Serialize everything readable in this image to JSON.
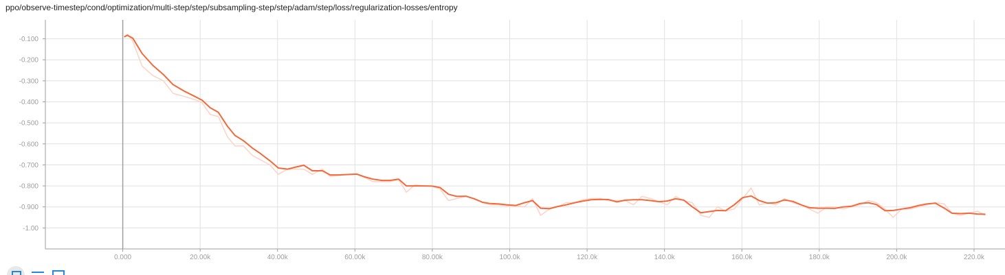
{
  "title": "ppo/observe-timestep/cond/optimization/multi-step/step/subsampling-step/step/adam/step/loss/regularization-losses/entropy",
  "colors": {
    "smoothed": "#f4683a",
    "raw": "#fcd3c5",
    "grid": "#e0e0e0",
    "axis": "#9e9e9e",
    "zero_line": "#9e9e9e",
    "tick_text": "#9e9e9e",
    "toolbar": "#1e88e5"
  },
  "toolbar": {
    "icons": [
      "fit-domain-icon",
      "toggle-log-scale-icon",
      "expand-chart-icon"
    ]
  },
  "chart_data": {
    "type": "line",
    "title": "ppo/observe-timestep/cond/optimization/multi-step/step/subsampling-step/step/adam/step/loss/regularization-losses/entropy",
    "xlabel": "",
    "ylabel": "",
    "xlim": [
      -20000,
      228000
    ],
    "ylim": [
      -1.1,
      -0.01
    ],
    "grid": true,
    "x_tick_labels": [
      "0.000",
      "20.00k",
      "40.00k",
      "60.00k",
      "80.00k",
      "100.0k",
      "120.0k",
      "140.0k",
      "160.0k",
      "180.0k",
      "200.0k",
      "220.0k"
    ],
    "x_ticks": [
      0,
      20000,
      40000,
      60000,
      80000,
      100000,
      120000,
      140000,
      160000,
      180000,
      200000,
      220000
    ],
    "y_tick_labels": [
      "-0.100",
      "-0.200",
      "-0.300",
      "-0.400",
      "-0.500",
      "-0.600",
      "-0.700",
      "-0.800",
      "-0.900",
      "-1.00"
    ],
    "y_ticks": [
      -0.1,
      -0.2,
      -0.3,
      -0.4,
      -0.5,
      -0.6,
      -0.7,
      -0.8,
      -0.9,
      -1.0
    ],
    "series": [
      {
        "name": "",
        "role": "raw",
        "x": [
          500,
          1200,
          2600,
          5000,
          7800,
          10500,
          13000,
          16000,
          18700,
          20500,
          22600,
          24700,
          27000,
          29000,
          31200,
          33500,
          35500,
          38000,
          40200,
          42600,
          44800,
          46800,
          49000,
          51600,
          53600,
          55800,
          58000,
          60500,
          62500,
          64700,
          67000,
          69000,
          71300,
          73300,
          75500,
          77800,
          80000,
          82000,
          84200,
          86300,
          88700,
          90800,
          93000,
          95000,
          97200,
          99400,
          101600,
          103800,
          105900,
          108000,
          110300,
          112400,
          114600,
          116800,
          119000,
          121100,
          123400,
          125500,
          127700,
          129900,
          132000,
          134200,
          136400,
          138600,
          140700,
          142900,
          145000,
          147200,
          149400,
          151600,
          153700,
          155800,
          158000,
          160200,
          162400,
          164500,
          166600,
          168800,
          171000,
          173200,
          175300,
          177500,
          179700,
          181900,
          184000,
          186200,
          188300,
          190500,
          192700,
          194800,
          197000,
          199100,
          201300,
          203500,
          205700,
          207800,
          210000,
          212200,
          214300,
          216500,
          218700,
          220900,
          222800
        ],
        "values": [
          -0.087,
          -0.079,
          -0.112,
          -0.23,
          -0.275,
          -0.3,
          -0.36,
          -0.375,
          -0.39,
          -0.405,
          -0.46,
          -0.47,
          -0.565,
          -0.61,
          -0.61,
          -0.655,
          -0.675,
          -0.7,
          -0.745,
          -0.72,
          -0.72,
          -0.72,
          -0.745,
          -0.72,
          -0.755,
          -0.75,
          -0.745,
          -0.745,
          -0.76,
          -0.78,
          -0.78,
          -0.78,
          -0.77,
          -0.83,
          -0.795,
          -0.8,
          -0.8,
          -0.815,
          -0.87,
          -0.86,
          -0.85,
          -0.86,
          -0.88,
          -0.89,
          -0.89,
          -0.895,
          -0.895,
          -0.9,
          -0.86,
          -0.94,
          -0.91,
          -0.9,
          -0.88,
          -0.88,
          -0.865,
          -0.86,
          -0.86,
          -0.87,
          -0.87,
          -0.87,
          -0.89,
          -0.85,
          -0.86,
          -0.875,
          -0.89,
          -0.85,
          -0.87,
          -0.88,
          -0.94,
          -0.95,
          -0.9,
          -0.92,
          -0.91,
          -0.86,
          -0.81,
          -0.89,
          -0.88,
          -0.89,
          -0.86,
          -0.88,
          -0.89,
          -0.91,
          -0.93,
          -0.9,
          -0.9,
          -0.91,
          -0.9,
          -0.89,
          -0.87,
          -0.88,
          -0.91,
          -0.95,
          -0.91,
          -0.91,
          -0.9,
          -0.89,
          -0.88,
          -0.885,
          -0.93,
          -0.94,
          -0.93,
          -0.92,
          -0.94
        ]
      },
      {
        "name": "",
        "role": "smoothed",
        "x": [
          500,
          1200,
          2600,
          5000,
          7800,
          10500,
          13000,
          16000,
          18700,
          20500,
          22600,
          24700,
          27000,
          29000,
          31200,
          33500,
          35500,
          38000,
          40200,
          42600,
          44800,
          46800,
          49000,
          51600,
          53600,
          55800,
          58000,
          60500,
          62500,
          64700,
          67000,
          69000,
          71300,
          73300,
          75500,
          77800,
          80000,
          82000,
          84200,
          86300,
          88700,
          90800,
          93000,
          95000,
          97200,
          99400,
          101600,
          103800,
          105900,
          108000,
          110300,
          112400,
          114600,
          116800,
          119000,
          121100,
          123400,
          125500,
          127700,
          129900,
          132000,
          134200,
          136400,
          138600,
          140700,
          142900,
          145000,
          147200,
          149400,
          151600,
          153700,
          155800,
          158000,
          160200,
          162400,
          164500,
          166600,
          168800,
          171000,
          173200,
          175300,
          177500,
          179700,
          181900,
          184000,
          186200,
          188300,
          190500,
          192700,
          194800,
          197000,
          199100,
          201300,
          203500,
          205700,
          207800,
          210000,
          212200,
          214300,
          216500,
          218700,
          220900,
          222800
        ],
        "values": [
          -0.09,
          -0.083,
          -0.097,
          -0.17,
          -0.227,
          -0.27,
          -0.318,
          -0.35,
          -0.375,
          -0.392,
          -0.428,
          -0.45,
          -0.515,
          -0.56,
          -0.585,
          -0.62,
          -0.645,
          -0.68,
          -0.715,
          -0.72,
          -0.71,
          -0.702,
          -0.728,
          -0.728,
          -0.748,
          -0.748,
          -0.746,
          -0.744,
          -0.757,
          -0.768,
          -0.774,
          -0.774,
          -0.768,
          -0.8,
          -0.8,
          -0.8,
          -0.801,
          -0.808,
          -0.84,
          -0.85,
          -0.849,
          -0.861,
          -0.878,
          -0.884,
          -0.886,
          -0.89,
          -0.893,
          -0.88,
          -0.87,
          -0.906,
          -0.908,
          -0.898,
          -0.89,
          -0.88,
          -0.872,
          -0.866,
          -0.864,
          -0.865,
          -0.876,
          -0.868,
          -0.866,
          -0.866,
          -0.87,
          -0.875,
          -0.872,
          -0.861,
          -0.868,
          -0.9,
          -0.928,
          -0.922,
          -0.917,
          -0.918,
          -0.89,
          -0.856,
          -0.848,
          -0.87,
          -0.882,
          -0.88,
          -0.867,
          -0.874,
          -0.89,
          -0.904,
          -0.906,
          -0.906,
          -0.907,
          -0.9,
          -0.897,
          -0.884,
          -0.88,
          -0.889,
          -0.918,
          -0.917,
          -0.91,
          -0.904,
          -0.893,
          -0.886,
          -0.882,
          -0.905,
          -0.93,
          -0.932,
          -0.93,
          -0.934,
          -0.935
        ]
      }
    ]
  }
}
